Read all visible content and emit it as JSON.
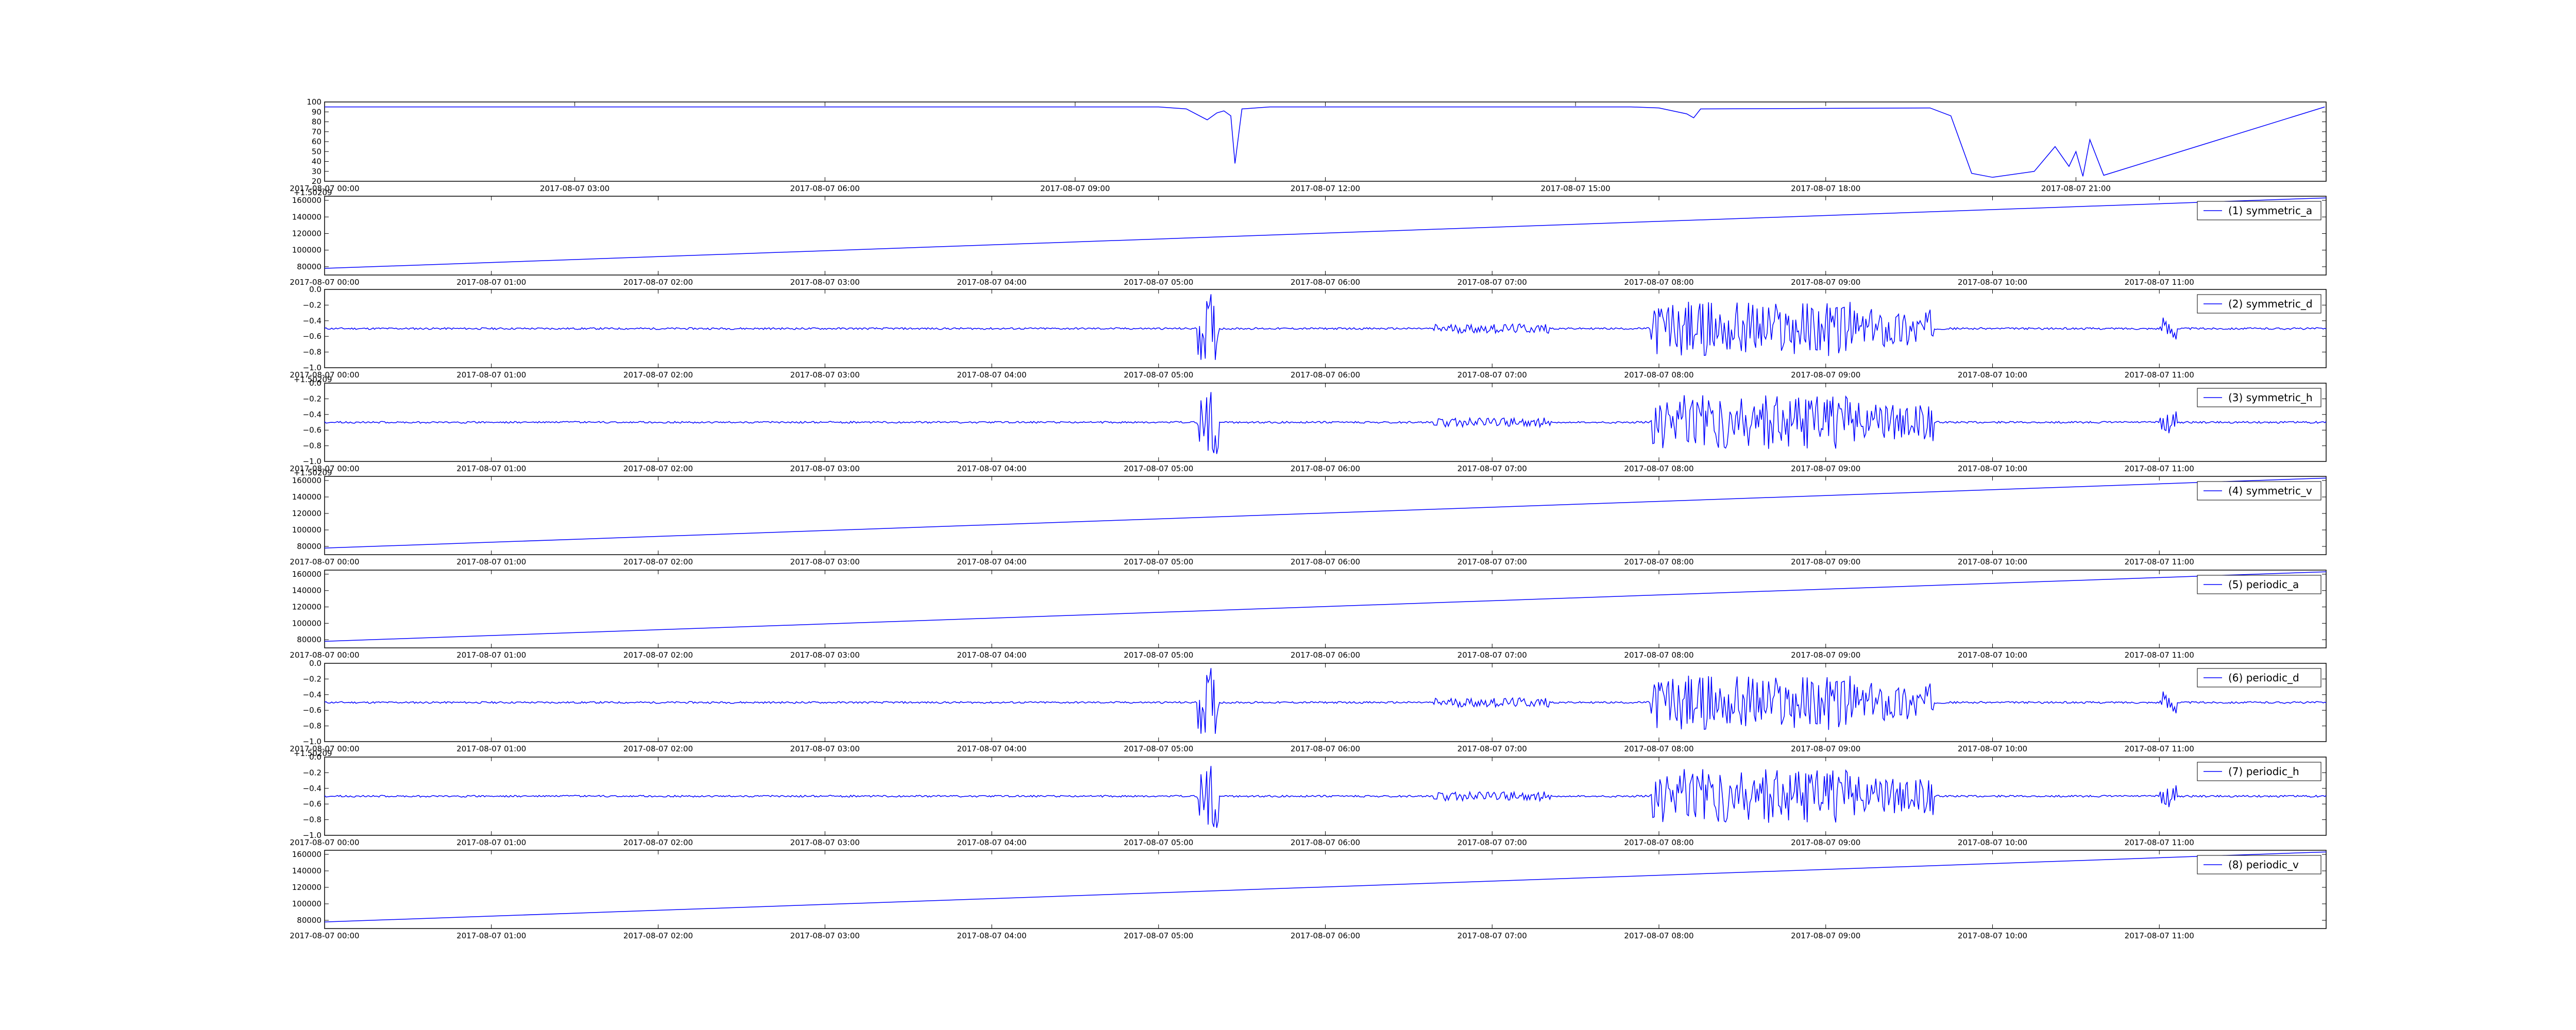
{
  "chart_data": [
    {
      "type": "line",
      "x_ticks": [
        "2017-08-07 00:00",
        "2017-08-07 03:00",
        "2017-08-07 06:00",
        "2017-08-07 09:00",
        "2017-08-07 12:00",
        "2017-08-07 15:00",
        "2017-08-07 18:00",
        "2017-08-07 21:00"
      ],
      "xlim": [
        "2017-08-07 00:00",
        "2017-08-08 00:00"
      ],
      "ylim": [
        20,
        100
      ],
      "y_ticks": [
        "20",
        "30",
        "40",
        "50",
        "60",
        "70",
        "80",
        "90",
        "100"
      ],
      "x_offset_text": "",
      "color": "#0000ff",
      "series": [
        {
          "x": [
            "00:00",
            "10:00",
            "10:20",
            "10:35",
            "10:42",
            "10:47",
            "10:52",
            "10:55",
            "11:00",
            "11:20",
            "15:40",
            "16:00",
            "16:20",
            "16:25",
            "16:30",
            "19:15",
            "19:30",
            "19:45",
            "20:00",
            "20:30",
            "20:45",
            "20:55",
            "21:00",
            "21:05",
            "21:10",
            "21:20",
            "23:59"
          ],
          "values": [
            95,
            95,
            93,
            82,
            89,
            91,
            86,
            38,
            93,
            95,
            95,
            94,
            88,
            84,
            93,
            94,
            86,
            28,
            24,
            30,
            55,
            35,
            50,
            25,
            62,
            26,
            95
          ]
        }
      ]
    },
    {
      "type": "line",
      "x_ticks": [
        "2017-08-07 00:00",
        "2017-08-07 01:00",
        "2017-08-07 02:00",
        "2017-08-07 03:00",
        "2017-08-07 04:00",
        "2017-08-07 05:00",
        "2017-08-07 06:00",
        "2017-08-07 07:00",
        "2017-08-07 08:00",
        "2017-08-07 09:00",
        "2017-08-07 10:00",
        "2017-08-07 11:00"
      ],
      "x_offset_text": "+1.50209",
      "ylim": [
        70000,
        165000
      ],
      "y_ticks": [
        "80000",
        "100000",
        "120000",
        "140000",
        "160000"
      ],
      "series": [
        {
          "name": "(1) symmetric_a",
          "x": [
            "00:00",
            "12:00"
          ],
          "values": [
            78000,
            163000
          ]
        }
      ]
    },
    {
      "type": "line",
      "x_ticks": [
        "2017-08-07 00:00",
        "2017-08-07 01:00",
        "2017-08-07 02:00",
        "2017-08-07 03:00",
        "2017-08-07 04:00",
        "2017-08-07 05:00",
        "2017-08-07 06:00",
        "2017-08-07 07:00",
        "2017-08-07 08:00",
        "2017-08-07 09:00",
        "2017-08-07 10:00",
        "2017-08-07 11:00"
      ],
      "ylim": [
        -1.0,
        0.0
      ],
      "y_ticks": [
        "−1.0",
        "−0.8",
        "−0.6",
        "−0.4",
        "−0.2",
        "0.0"
      ],
      "series": [
        {
          "name": "(2) symmetric_d",
          "values": [
            -0.5
          ]
        }
      ]
    },
    {
      "type": "line",
      "x_ticks": [
        "2017-08-07 00:00",
        "2017-08-07 01:00",
        "2017-08-07 02:00",
        "2017-08-07 03:00",
        "2017-08-07 04:00",
        "2017-08-07 05:00",
        "2017-08-07 06:00",
        "2017-08-07 07:00",
        "2017-08-07 08:00",
        "2017-08-07 09:00",
        "2017-08-07 10:00",
        "2017-08-07 11:00"
      ],
      "x_offset_text": "+1.50209",
      "ylim": [
        -1.0,
        0.0
      ],
      "y_ticks": [
        "−1.0",
        "−0.8",
        "−0.6",
        "−0.4",
        "−0.2",
        "0.0"
      ],
      "series": [
        {
          "name": "(3) symmetric_h",
          "values": [
            -0.5
          ]
        }
      ]
    },
    {
      "type": "line",
      "x_ticks": [
        "2017-08-07 00:00",
        "2017-08-07 01:00",
        "2017-08-07 02:00",
        "2017-08-07 03:00",
        "2017-08-07 04:00",
        "2017-08-07 05:00",
        "2017-08-07 06:00",
        "2017-08-07 07:00",
        "2017-08-07 08:00",
        "2017-08-07 09:00",
        "2017-08-07 10:00",
        "2017-08-07 11:00"
      ],
      "x_offset_text": "+1.50209",
      "ylim": [
        70000,
        165000
      ],
      "y_ticks": [
        "80000",
        "100000",
        "120000",
        "140000",
        "160000"
      ],
      "series": [
        {
          "name": "(4) symmetric_v",
          "x": [
            "00:00",
            "12:00"
          ],
          "values": [
            78000,
            163000
          ]
        }
      ]
    },
    {
      "type": "line",
      "x_ticks": [
        "2017-08-07 00:00",
        "2017-08-07 01:00",
        "2017-08-07 02:00",
        "2017-08-07 03:00",
        "2017-08-07 04:00",
        "2017-08-07 05:00",
        "2017-08-07 06:00",
        "2017-08-07 07:00",
        "2017-08-07 08:00",
        "2017-08-07 09:00",
        "2017-08-07 10:00",
        "2017-08-07 11:00"
      ],
      "ylim": [
        70000,
        165000
      ],
      "y_ticks": [
        "80000",
        "100000",
        "120000",
        "140000",
        "160000"
      ],
      "series": [
        {
          "name": "(5) periodic_a",
          "x": [
            "00:00",
            "12:00"
          ],
          "values": [
            78000,
            163000
          ]
        }
      ]
    },
    {
      "type": "line",
      "x_ticks": [
        "2017-08-07 00:00",
        "2017-08-07 01:00",
        "2017-08-07 02:00",
        "2017-08-07 03:00",
        "2017-08-07 04:00",
        "2017-08-07 05:00",
        "2017-08-07 06:00",
        "2017-08-07 07:00",
        "2017-08-07 08:00",
        "2017-08-07 09:00",
        "2017-08-07 10:00",
        "2017-08-07 11:00"
      ],
      "ylim": [
        -1.0,
        0.0
      ],
      "y_ticks": [
        "−1.0",
        "−0.8",
        "−0.6",
        "−0.4",
        "−0.2",
        "0.0"
      ],
      "series": [
        {
          "name": "(6) periodic_d",
          "values": [
            -0.5
          ]
        }
      ]
    },
    {
      "type": "line",
      "x_ticks": [
        "2017-08-07 00:00",
        "2017-08-07 01:00",
        "2017-08-07 02:00",
        "2017-08-07 03:00",
        "2017-08-07 04:00",
        "2017-08-07 05:00",
        "2017-08-07 06:00",
        "2017-08-07 07:00",
        "2017-08-07 08:00",
        "2017-08-07 09:00",
        "2017-08-07 10:00",
        "2017-08-07 11:00"
      ],
      "x_offset_text": "+1.50209",
      "ylim": [
        -1.0,
        0.0
      ],
      "y_ticks": [
        "−1.0",
        "−0.8",
        "−0.6",
        "−0.4",
        "−0.2",
        "0.0"
      ],
      "series": [
        {
          "name": "(7) periodic_h",
          "values": [
            -0.5
          ]
        }
      ]
    },
    {
      "type": "line",
      "x_ticks": [
        "2017-08-07 00:00",
        "2017-08-07 01:00",
        "2017-08-07 02:00",
        "2017-08-07 03:00",
        "2017-08-07 04:00",
        "2017-08-07 05:00",
        "2017-08-07 06:00",
        "2017-08-07 07:00",
        "2017-08-07 08:00",
        "2017-08-07 09:00",
        "2017-08-07 10:00",
        "2017-08-07 11:00"
      ],
      "ylim": [
        70000,
        165000
      ],
      "y_ticks": [
        "80000",
        "100000",
        "120000",
        "140000",
        "160000"
      ],
      "series": [
        {
          "name": "(8) periodic_v",
          "x": [
            "00:00",
            "12:00"
          ],
          "values": [
            78000,
            163000
          ]
        }
      ]
    }
  ]
}
